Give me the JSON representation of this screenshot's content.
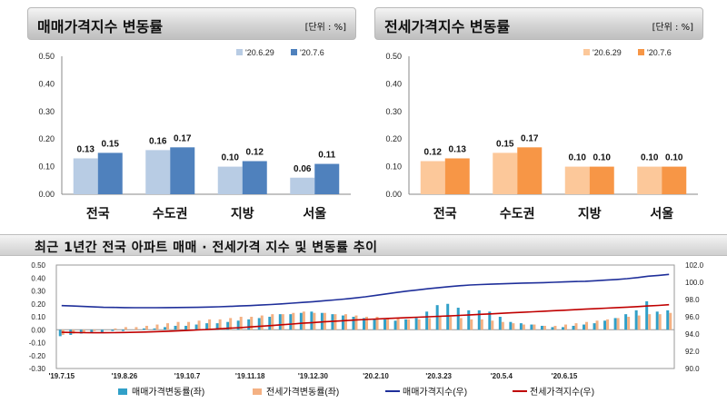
{
  "left_panel": {
    "title": "매매가격지수 변동률",
    "unit": "[단위 : %]"
  },
  "right_panel": {
    "title": "전세가격지수 변동률",
    "unit": "[단위 : %]"
  },
  "bottom_panel": {
    "title": "최근 1년간 전국 아파트 매매 · 전세가격 지수 및 변동률 추이"
  },
  "colors": {
    "sale_prev": "#b8cce4",
    "sale_curr": "#4f81bd",
    "jeonse_prev": "#fcc89a",
    "jeonse_curr": "#f79646",
    "sale_rate_bar": "#31a0c8",
    "jeonse_rate_bar": "#f4b183",
    "sale_index_line": "#1f2f9a",
    "jeonse_index_line": "#c00000"
  },
  "chart_data": [
    {
      "type": "bar",
      "categories": [
        "전국",
        "수도권",
        "지방",
        "서울"
      ],
      "series": [
        {
          "name": "'20.6.29",
          "values": [
            0.13,
            0.16,
            0.1,
            0.06
          ]
        },
        {
          "name": "'20.7.6",
          "values": [
            0.15,
            0.17,
            0.12,
            0.11
          ]
        }
      ],
      "ylim": [
        0,
        0.5
      ],
      "yticks": [
        "0.50",
        "0.40",
        "0.30",
        "0.20",
        "0.10",
        "0.00"
      ],
      "value_labels": [
        [
          "0.13",
          "0.16",
          "0.10",
          "0.06"
        ],
        [
          "0.15",
          "0.17",
          "0.12",
          "0.11"
        ]
      ],
      "legend": "top-right",
      "grid": false
    },
    {
      "type": "bar",
      "categories": [
        "전국",
        "수도권",
        "지방",
        "서울"
      ],
      "series": [
        {
          "name": "'20.6.29",
          "values": [
            0.12,
            0.15,
            0.1,
            0.1
          ]
        },
        {
          "name": "'20.7.6",
          "values": [
            0.13,
            0.17,
            0.1,
            0.1
          ]
        }
      ],
      "ylim": [
        0,
        0.5
      ],
      "yticks": [
        "0.50",
        "0.40",
        "0.30",
        "0.20",
        "0.10",
        "0.00"
      ],
      "value_labels": [
        [
          "0.12",
          "0.15",
          "0.10",
          "0.10"
        ],
        [
          "0.13",
          "0.17",
          "0.10",
          "0.10"
        ]
      ],
      "legend": "top-right",
      "grid": false
    },
    {
      "type": "bar",
      "x_ticks": [
        "'19.7.15",
        "'19.8.26",
        "'19.10.7",
        "'19.11.18",
        "'19.12.30",
        "'20.2.10",
        "'20.3.23",
        "'20.5.4",
        "'20.6.15"
      ],
      "ylim_left": [
        -0.3,
        0.5
      ],
      "yticks_left": [
        "0.50",
        "0.40",
        "0.30",
        "0.20",
        "0.10",
        "0.00",
        "-0.10",
        "-0.20",
        "-0.30"
      ],
      "ylim_right": [
        90,
        102
      ],
      "yticks_right": [
        "102.0",
        "100.0",
        "98.0",
        "96.0",
        "94.0",
        "92.0",
        "90.0"
      ],
      "series": [
        {
          "name": "매매가격변동률(좌)",
          "type": "bar",
          "axis": "left",
          "values": [
            -0.05,
            -0.04,
            -0.03,
            -0.02,
            -0.02,
            -0.01,
            -0.01,
            0.0,
            0.01,
            0.01,
            0.02,
            0.03,
            0.03,
            0.04,
            0.05,
            0.05,
            0.06,
            0.07,
            0.08,
            0.09,
            0.1,
            0.12,
            0.12,
            0.13,
            0.14,
            0.13,
            0.12,
            0.11,
            0.1,
            0.09,
            0.08,
            0.08,
            0.07,
            0.08,
            0.09,
            0.14,
            0.19,
            0.2,
            0.17,
            0.15,
            0.15,
            0.14,
            0.1,
            0.06,
            0.05,
            0.04,
            0.03,
            0.02,
            0.02,
            0.03,
            0.04,
            0.05,
            0.07,
            0.09,
            0.12,
            0.15,
            0.22,
            0.14,
            0.15
          ]
        },
        {
          "name": "전세가격변동률(좌)",
          "type": "bar",
          "axis": "left",
          "values": [
            -0.04,
            -0.03,
            -0.02,
            -0.01,
            0.0,
            0.01,
            0.02,
            0.02,
            0.03,
            0.04,
            0.05,
            0.06,
            0.06,
            0.07,
            0.08,
            0.08,
            0.09,
            0.1,
            0.1,
            0.11,
            0.12,
            0.12,
            0.13,
            0.14,
            0.13,
            0.13,
            0.12,
            0.12,
            0.11,
            0.1,
            0.1,
            0.09,
            0.09,
            0.08,
            0.08,
            0.09,
            0.1,
            0.1,
            0.09,
            0.08,
            0.08,
            0.07,
            0.06,
            0.05,
            0.04,
            0.04,
            0.03,
            0.03,
            0.04,
            0.05,
            0.06,
            0.07,
            0.08,
            0.09,
            0.1,
            0.11,
            0.12,
            0.12,
            0.13
          ]
        },
        {
          "name": "매매가격지수(우)",
          "type": "line",
          "axis": "right",
          "values": [
            97.3,
            97.25,
            97.2,
            97.15,
            97.1,
            97.08,
            97.06,
            97.05,
            97.05,
            97.05,
            97.06,
            97.07,
            97.08,
            97.1,
            97.13,
            97.16,
            97.2,
            97.25,
            97.3,
            97.36,
            97.42,
            97.5,
            97.58,
            97.66,
            97.75,
            97.85,
            97.95,
            98.05,
            98.18,
            98.32,
            98.48,
            98.65,
            98.82,
            98.98,
            99.12,
            99.25,
            99.38,
            99.5,
            99.6,
            99.68,
            99.74,
            99.78,
            99.82,
            99.86,
            99.9,
            99.93,
            99.96,
            100.0,
            100.04,
            100.08,
            100.12,
            100.18,
            100.25,
            100.33,
            100.42,
            100.55,
            100.7,
            100.8,
            100.92
          ]
        },
        {
          "name": "전세가격지수(우)",
          "type": "line",
          "axis": "right",
          "values": [
            94.2,
            94.18,
            94.16,
            94.15,
            94.15,
            94.16,
            94.18,
            94.2,
            94.23,
            94.27,
            94.31,
            94.36,
            94.41,
            94.47,
            94.53,
            94.6,
            94.67,
            94.74,
            94.82,
            94.9,
            94.98,
            95.07,
            95.16,
            95.25,
            95.33,
            95.41,
            95.48,
            95.55,
            95.62,
            95.68,
            95.74,
            95.8,
            95.85,
            95.9,
            95.95,
            96.0,
            96.05,
            96.1,
            96.16,
            96.22,
            96.28,
            96.34,
            96.4,
            96.46,
            96.52,
            96.58,
            96.64,
            96.7,
            96.76,
            96.82,
            96.88,
            96.94,
            97.0,
            97.06,
            97.12,
            97.18,
            97.25,
            97.32,
            97.4
          ]
        }
      ],
      "legend": "bottom",
      "grid": false
    }
  ]
}
